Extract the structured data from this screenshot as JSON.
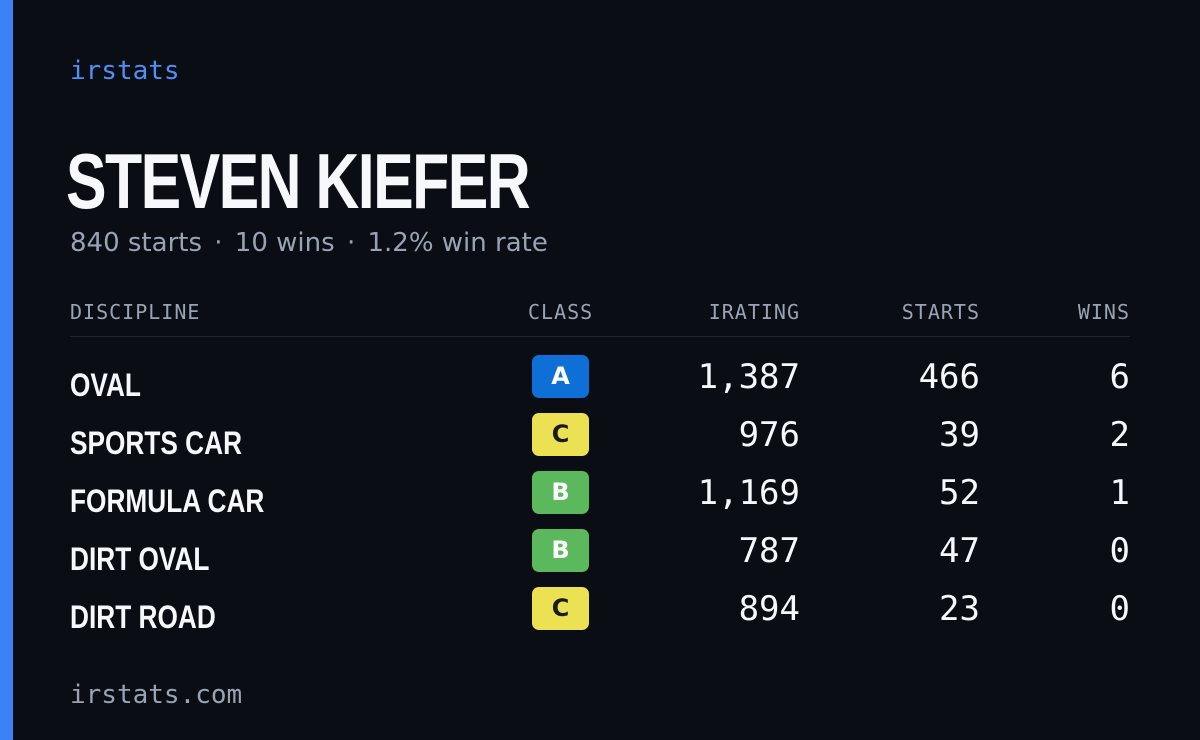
{
  "brand": "irstats",
  "driver_name": "STEVEN KIEFER",
  "summary": {
    "starts": "840 starts",
    "wins": "10 wins",
    "win_rate": "1.2% win rate",
    "separator": "·"
  },
  "table": {
    "headers": {
      "discipline": "DISCIPLINE",
      "class": "CLASS",
      "irating": "IRATING",
      "starts": "STARTS",
      "wins": "WINS"
    },
    "rows": [
      {
        "discipline": "OVAL",
        "class": "A",
        "irating": "1,387",
        "starts": "466",
        "wins": "6"
      },
      {
        "discipline": "SPORTS CAR",
        "class": "C",
        "irating": "976",
        "starts": "39",
        "wins": "2"
      },
      {
        "discipline": "FORMULA CAR",
        "class": "B",
        "irating": "1,169",
        "starts": "52",
        "wins": "1"
      },
      {
        "discipline": "DIRT OVAL",
        "class": "B",
        "irating": "787",
        "starts": "47",
        "wins": "0"
      },
      {
        "discipline": "DIRT ROAD",
        "class": "C",
        "irating": "894",
        "starts": "23",
        "wins": "0"
      }
    ]
  },
  "class_colors": {
    "A": {
      "bg": "#0e6fd6",
      "fg": "#ffffff"
    },
    "B": {
      "bg": "#5cb85c",
      "fg": "#ffffff"
    },
    "C": {
      "bg": "#ece153",
      "fg": "#1a1a1a"
    }
  },
  "colors": {
    "accent": "#3b82f6",
    "background": "#0a0d14"
  },
  "footer": "irstats.com"
}
